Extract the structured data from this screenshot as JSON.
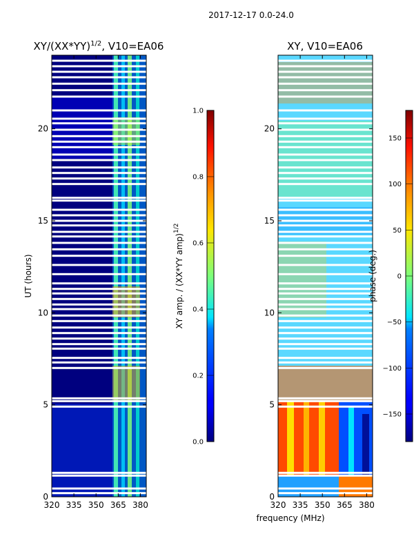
{
  "figure": {
    "suptitle": "2017-12-17 0.0-24.0",
    "xlabel_shared": "frequency (MHz)"
  },
  "chart_data": [
    {
      "type": "heatmap",
      "title": "XY/(XX*YY)",
      "title_exp": "1/2",
      "title_suffix": ", V10=EA06",
      "xlabel": "",
      "ylabel": "UT (hours)",
      "xlim": [
        320,
        384
      ],
      "ylim": [
        0,
        24
      ],
      "xticks": [
        320,
        335,
        350,
        365,
        380
      ],
      "yticks": [
        0,
        5,
        10,
        15,
        20
      ],
      "colormap": "jet",
      "colorbar": {
        "label": "XY amp. / (XX*YY amp)",
        "label_exp": "1/2",
        "range": [
          0.0,
          1.0
        ],
        "ticks": [
          "0.0",
          "0.2",
          "0.4",
          "0.6",
          "0.8",
          "1.0"
        ]
      }
    },
    {
      "type": "heatmap",
      "title": "XY, V10=EA06",
      "xlabel": "frequency (MHz)",
      "ylabel": "",
      "xlim": [
        320,
        384
      ],
      "ylim": [
        0,
        24
      ],
      "xticks": [
        320,
        335,
        350,
        365,
        380
      ],
      "yticks": [
        0,
        5,
        10,
        15,
        20
      ],
      "colormap": "jet",
      "colorbar": {
        "label": "phase (deg.)",
        "range": [
          -180,
          180
        ],
        "ticks": [
          -150,
          -100,
          -50,
          0,
          50,
          100,
          150
        ]
      }
    }
  ],
  "flagged_hours": [
    0.2,
    0.45,
    1.15,
    1.3,
    4.9,
    5.2,
    5.35,
    7.0,
    7.3,
    7.55,
    8.05,
    8.3,
    8.6,
    8.9,
    9.2,
    9.55,
    9.85,
    10.2,
    10.45,
    10.75,
    11.05,
    11.3,
    11.6,
    12.1,
    12.6,
    13.1,
    13.45,
    13.8,
    14.15,
    14.4,
    14.75,
    15.0,
    15.3,
    15.6,
    16.1,
    16.25,
    17.0,
    17.3,
    17.6,
    17.9,
    18.3,
    18.6,
    19.0,
    19.3,
    19.6,
    19.95,
    20.3,
    20.55,
    21.0,
    21.75,
    22.1,
    22.45,
    22.8,
    23.1,
    23.4,
    23.7
  ]
}
